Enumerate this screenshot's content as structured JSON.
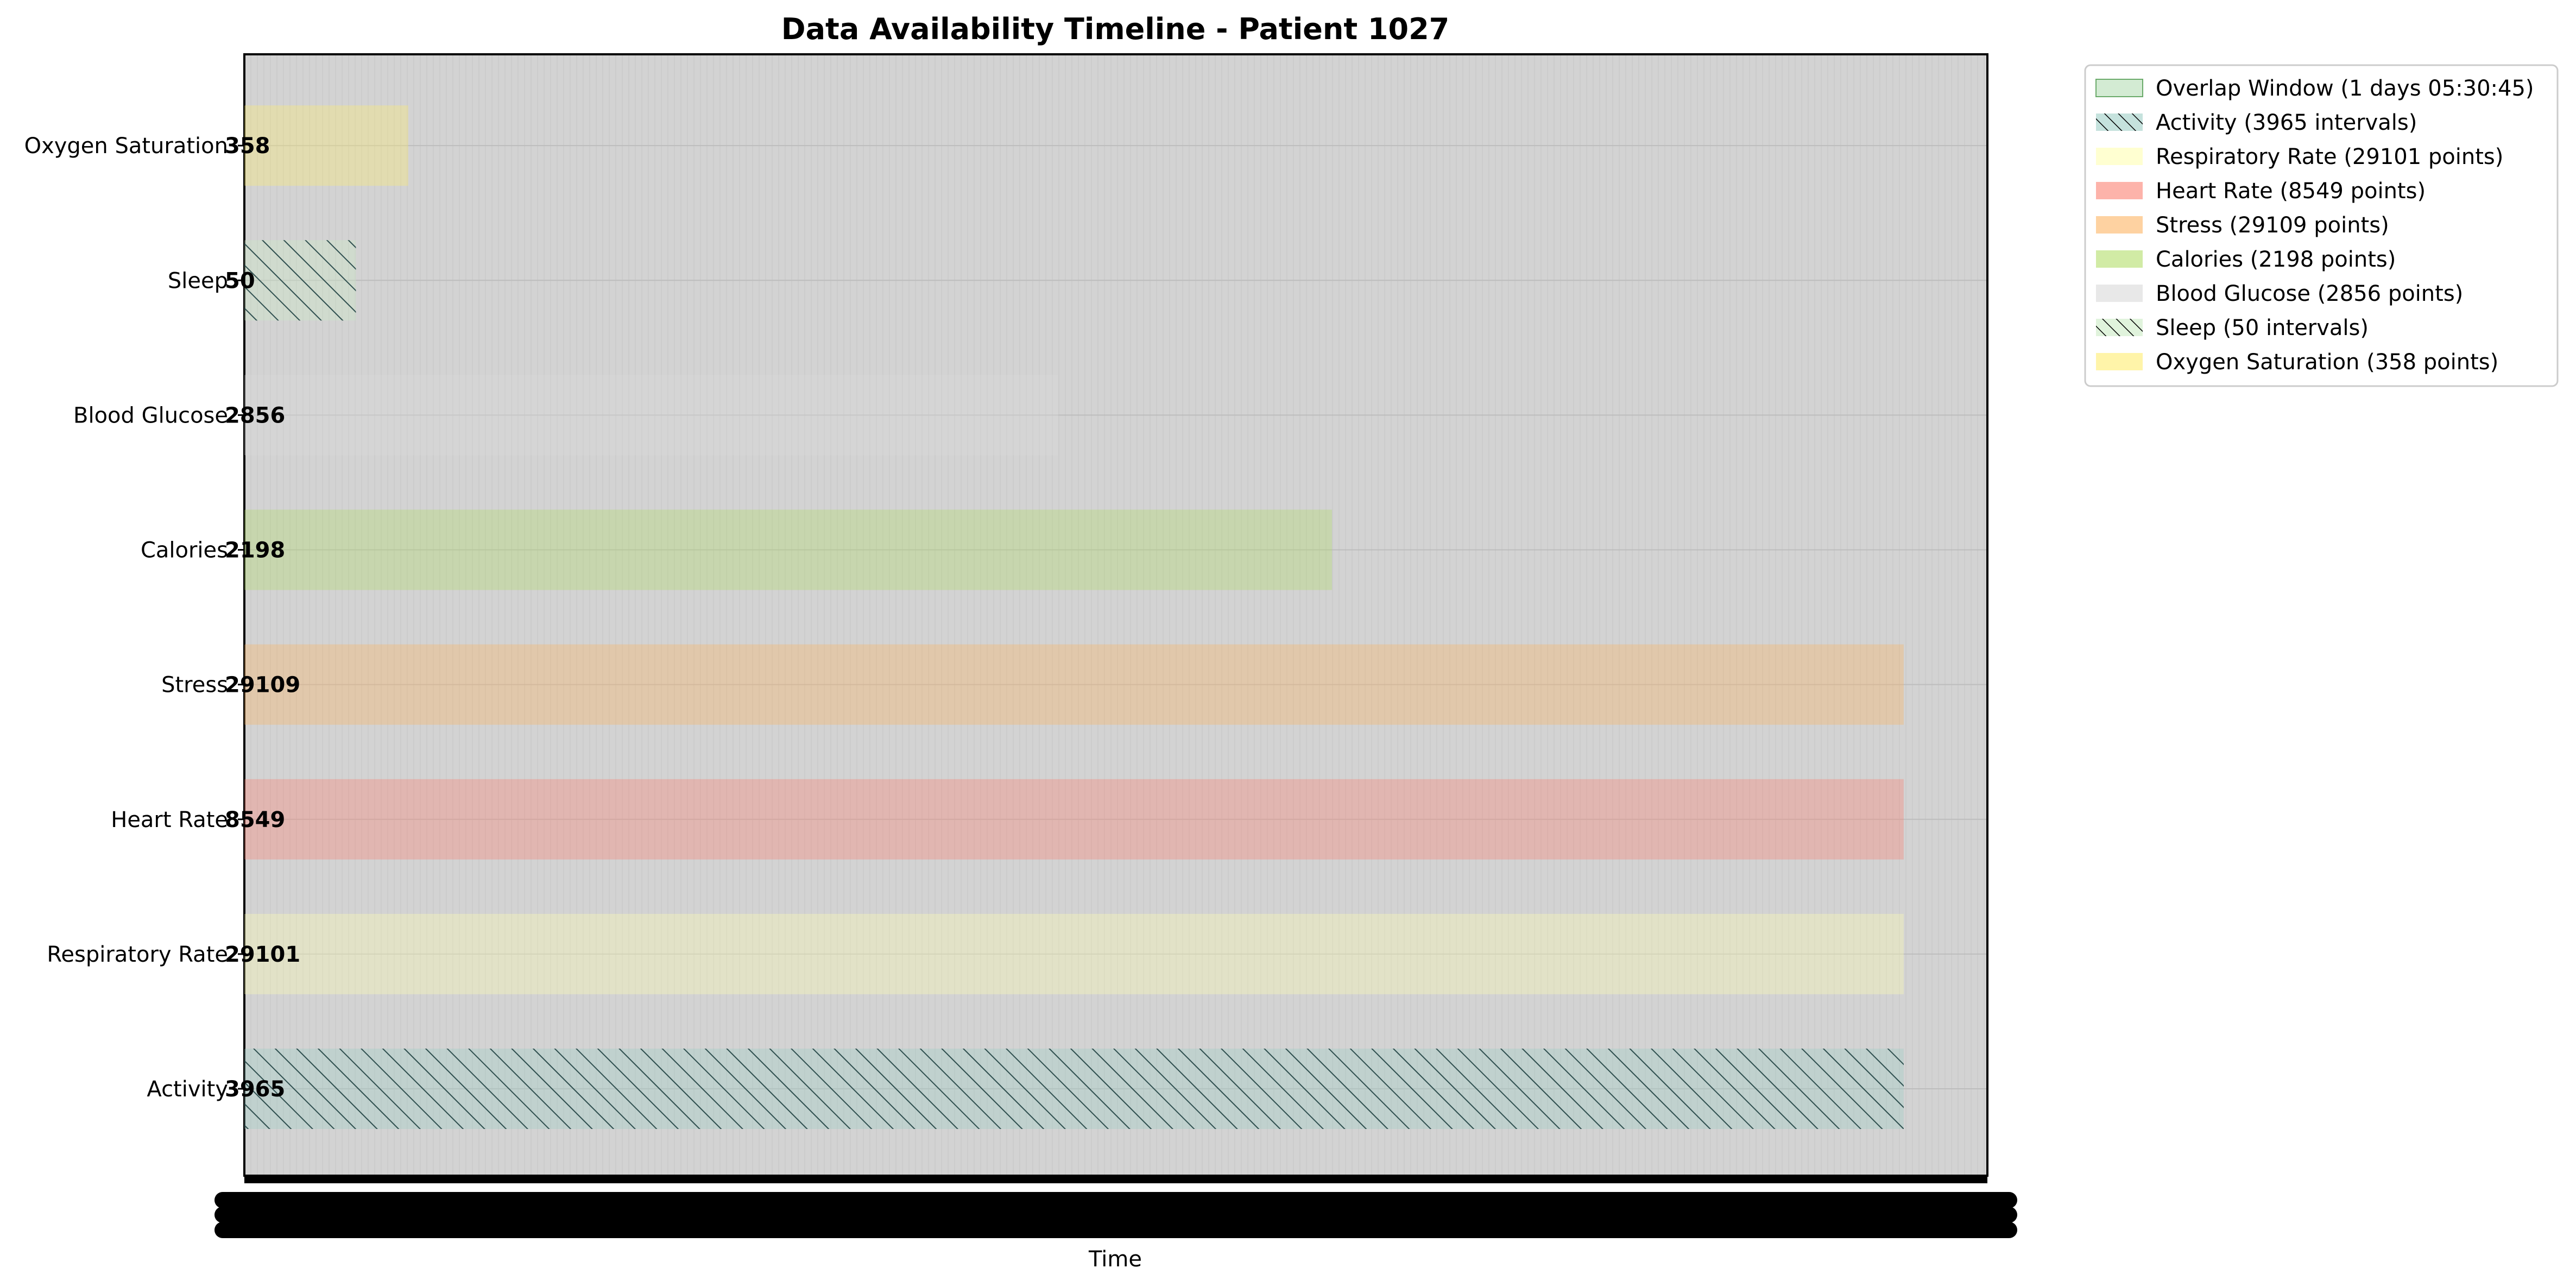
{
  "chart_data": {
    "type": "bar",
    "orientation": "horizontal",
    "title": "Data Availability Timeline - Patient 1027",
    "xlabel": "Time",
    "ylabel": "",
    "grid": true,
    "legend_placement": "outside top-right",
    "x_tick_labels_legible": false,
    "x_axis_note": "x tick labels are overlapping and illegible",
    "xlim": [
      0,
      1
    ],
    "categories": [
      "Activity",
      "Respiratory Rate",
      "Heart Rate",
      "Stress",
      "Calories",
      "Blood Glucose",
      "Sleep",
      "Oxygen Saturation"
    ],
    "series": [
      {
        "name": "Activity (3965 intervals)",
        "category": "Activity",
        "count_label": "3965",
        "extent": [
          0,
          0.952
        ],
        "color": "#9fcfc6",
        "hatch": true
      },
      {
        "name": "Respiratory Rate (29101 points)",
        "category": "Respiratory Rate",
        "count_label": "29101",
        "extent": [
          0,
          0.952
        ],
        "color": "#ffffb3",
        "hatch": false
      },
      {
        "name": "Heart Rate (8549 points)",
        "category": "Heart Rate",
        "count_label": "8549",
        "extent": [
          0,
          0.952
        ],
        "color": "#fb8072",
        "hatch": false
      },
      {
        "name": "Stress (29109 points)",
        "category": "Stress",
        "count_label": "29109",
        "extent": [
          0,
          0.952
        ],
        "color": "#fdb462",
        "hatch": false
      },
      {
        "name": "Calories (2198 points)",
        "category": "Calories",
        "count_label": "2198",
        "extent": [
          0,
          0.624
        ],
        "color": "#b3de69",
        "hatch": false
      },
      {
        "name": "Blood Glucose (2856 points)",
        "category": "Blood Glucose",
        "count_label": "2856",
        "extent": [
          0,
          0.467
        ],
        "color": "#d9d9d9",
        "hatch": false
      },
      {
        "name": "Sleep (50 intervals)",
        "category": "Sleep",
        "count_label": "50",
        "extent": [
          0,
          0.064
        ],
        "color": "#ccebc5",
        "hatch": true
      },
      {
        "name": "Oxygen Saturation (358 points)",
        "category": "Oxygen Saturation",
        "count_label": "358",
        "extent": [
          0,
          0.094
        ],
        "color": "#ffed6f",
        "hatch": false
      }
    ],
    "overlap_window": {
      "name": "Overlap Window (1 days 05:30:45)",
      "color": "#a8d8a8"
    },
    "legend_order": [
      "Overlap Window (1 days 05:30:45)",
      "Activity (3965 intervals)",
      "Respiratory Rate (29101 points)",
      "Heart Rate (8549 points)",
      "Stress (29109 points)",
      "Calories (2198 points)",
      "Blood Glucose (2856 points)",
      "Sleep (50 intervals)",
      "Oxygen Saturation (358 points)"
    ],
    "colors": {
      "plot_background": "#d3d3d3",
      "bar_overlay_tint": "#c8c8c8"
    }
  }
}
